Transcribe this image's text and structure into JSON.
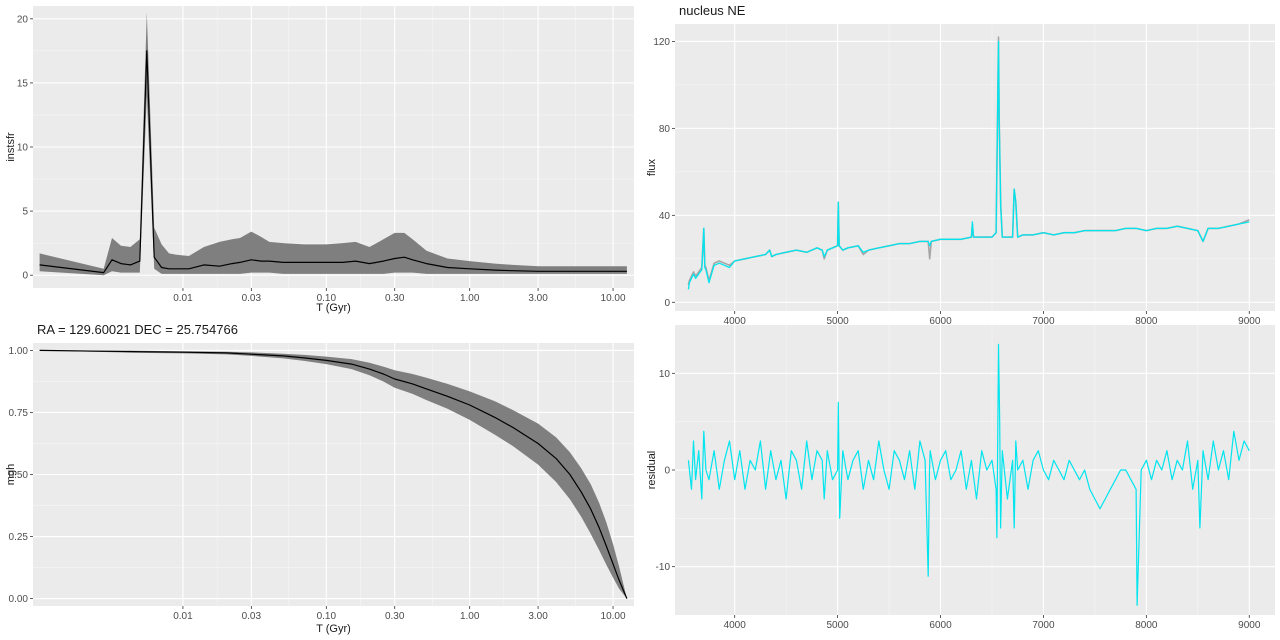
{
  "colors": {
    "panel_bg": "#EBEBEB",
    "grid_major": "#FFFFFF",
    "ribbon": "#7F7F7F",
    "line": "#000000",
    "observed": "#A6A6A6",
    "model": "#00E5EE"
  },
  "chart_data": [
    {
      "type": "line",
      "xlabel": "T (Gyr)",
      "ylabel": "instsfr",
      "x_scale": "log",
      "xlim": [
        0.0009,
        14
      ],
      "ylim": [
        -1,
        21
      ],
      "x_ticks": [
        0.01,
        0.03,
        0.1,
        0.3,
        1,
        3,
        10
      ],
      "x_tick_labels": [
        "0.01",
        "0.03",
        "0.10",
        "0.30",
        "1.00",
        "3.00",
        "10.00"
      ],
      "y_ticks": [
        0,
        5,
        10,
        15,
        20
      ],
      "y_tick_labels": [
        "0",
        "5",
        "10",
        "15",
        "20"
      ],
      "grid": true,
      "series": [
        {
          "x": [
            0.001,
            0.0028,
            0.0032,
            0.0037,
            0.0043,
            0.005,
            0.0056,
            0.0063,
            0.0071,
            0.008,
            0.009,
            0.011,
            0.014,
            0.018,
            0.022,
            0.025,
            0.03,
            0.035,
            0.04,
            0.05,
            0.07,
            0.1,
            0.13,
            0.16,
            0.2,
            0.25,
            0.3,
            0.35,
            0.4,
            0.5,
            0.7,
            1.0,
            1.5,
            2,
            3,
            5,
            7,
            10,
            12.5
          ],
          "y": [
            0.8,
            0.2,
            1.2,
            0.9,
            0.8,
            1.1,
            17.5,
            1.4,
            0.6,
            0.5,
            0.5,
            0.5,
            0.8,
            0.7,
            0.9,
            1.0,
            1.2,
            1.1,
            1.1,
            1.0,
            1.0,
            1.0,
            1.0,
            1.1,
            0.9,
            1.1,
            1.3,
            1.4,
            1.2,
            0.9,
            0.6,
            0.5,
            0.4,
            0.35,
            0.3,
            0.3,
            0.3,
            0.3,
            0.3
          ],
          "lower": [
            0.3,
            0.0,
            0.3,
            0.2,
            0.2,
            0.2,
            14.0,
            0.5,
            0.1,
            0.1,
            0.1,
            0.1,
            0.1,
            0.1,
            0.1,
            0.1,
            0.2,
            0.2,
            0.2,
            0.1,
            0.1,
            0.1,
            0.1,
            0.1,
            0.1,
            0.1,
            0.2,
            0.2,
            0.2,
            0.1,
            0.1,
            0.1,
            0.1,
            0.1,
            0.1,
            0.1,
            0.1,
            0.1,
            0.1
          ],
          "upper": [
            1.7,
            0.5,
            2.9,
            2.3,
            2.2,
            2.8,
            20.5,
            3.7,
            2.4,
            1.7,
            1.6,
            1.5,
            2.2,
            2.6,
            2.8,
            2.9,
            3.4,
            3.0,
            2.6,
            2.5,
            2.4,
            2.4,
            2.5,
            2.6,
            2.2,
            2.8,
            3.3,
            3.3,
            2.8,
            1.9,
            1.3,
            1.1,
            0.9,
            0.8,
            0.7,
            0.7,
            0.7,
            0.7,
            0.7
          ]
        }
      ]
    },
    {
      "type": "line",
      "title": "RA = 129.60021  DEC = 25.754766",
      "xlabel": "T (Gyr)",
      "ylabel": "mgh",
      "x_scale": "log",
      "xlim": [
        0.0009,
        14
      ],
      "ylim": [
        -0.03,
        1.03
      ],
      "x_ticks": [
        0.01,
        0.03,
        0.1,
        0.3,
        1,
        3,
        10
      ],
      "x_tick_labels": [
        "0.01",
        "0.03",
        "0.10",
        "0.30",
        "1.00",
        "3.00",
        "10.00"
      ],
      "y_ticks": [
        0,
        0.25,
        0.5,
        0.75,
        1
      ],
      "y_tick_labels": [
        "0.00",
        "0.25",
        "0.50",
        "0.75",
        "1.00"
      ],
      "grid": true,
      "series": [
        {
          "x": [
            0.001,
            0.005,
            0.01,
            0.02,
            0.03,
            0.05,
            0.07,
            0.1,
            0.15,
            0.2,
            0.25,
            0.3,
            0.4,
            0.5,
            0.7,
            1.0,
            1.5,
            2,
            3,
            4,
            5,
            6,
            7,
            8,
            9,
            10,
            11,
            12.5
          ],
          "y": [
            1.0,
            0.995,
            0.993,
            0.99,
            0.985,
            0.978,
            0.97,
            0.96,
            0.945,
            0.925,
            0.905,
            0.885,
            0.865,
            0.845,
            0.815,
            0.78,
            0.73,
            0.69,
            0.625,
            0.565,
            0.5,
            0.43,
            0.36,
            0.285,
            0.21,
            0.14,
            0.075,
            0.0
          ],
          "lower": [
            1.0,
            0.99,
            0.988,
            0.984,
            0.978,
            0.968,
            0.958,
            0.945,
            0.925,
            0.9,
            0.875,
            0.85,
            0.825,
            0.8,
            0.765,
            0.72,
            0.66,
            0.615,
            0.54,
            0.47,
            0.4,
            0.33,
            0.26,
            0.195,
            0.135,
            0.085,
            0.04,
            0.0
          ],
          "upper": [
            1.0,
            0.999,
            0.997,
            0.995,
            0.992,
            0.987,
            0.982,
            0.975,
            0.965,
            0.95,
            0.935,
            0.92,
            0.905,
            0.89,
            0.865,
            0.835,
            0.795,
            0.76,
            0.705,
            0.65,
            0.59,
            0.525,
            0.46,
            0.385,
            0.305,
            0.22,
            0.13,
            0.0
          ]
        }
      ]
    },
    {
      "type": "line",
      "title": "nucleus NE",
      "xlabel": "",
      "ylabel": "flux",
      "xlim": [
        3420,
        9250
      ],
      "ylim": [
        -4,
        128
      ],
      "x_ticks": [
        4000,
        5000,
        6000,
        7000,
        8000,
        9000
      ],
      "x_tick_labels": [
        "4000",
        "5000",
        "6000",
        "7000",
        "8000",
        "9000"
      ],
      "y_ticks": [
        0,
        40,
        80,
        120
      ],
      "y_tick_labels": [
        "0",
        "40",
        "80",
        "120"
      ],
      "grid": true,
      "series": [
        {
          "x": [
            3550,
            3560,
            3580,
            3600,
            3620,
            3650,
            3680,
            3700,
            3710,
            3720,
            3750,
            3800,
            3850,
            3900,
            3950,
            4000,
            4100,
            4200,
            4300,
            4340,
            4360,
            4400,
            4500,
            4600,
            4700,
            4800,
            4850,
            4870,
            4900,
            4950,
            5000,
            5007,
            5015,
            5050,
            5100,
            5200,
            5250,
            5300,
            5400,
            5500,
            5600,
            5700,
            5800,
            5880,
            5895,
            5910,
            6000,
            6100,
            6200,
            6300,
            6310,
            6320,
            6400,
            6500,
            6540,
            6560,
            6563,
            6570,
            6585,
            6600,
            6650,
            6700,
            6716,
            6731,
            6750,
            6800,
            6900,
            7000,
            7100,
            7200,
            7300,
            7400,
            7500,
            7600,
            7700,
            7800,
            7900,
            8000,
            8100,
            8200,
            8300,
            8400,
            8500,
            8550,
            8600,
            8650,
            8700,
            8800,
            8900,
            9000
          ],
          "y": [
            8,
            10,
            12,
            14,
            12,
            14,
            16,
            34,
            17,
            16,
            10,
            18,
            19,
            18,
            17,
            19,
            20,
            21,
            22,
            24,
            21,
            22,
            23,
            24,
            23,
            25,
            24,
            20,
            24,
            25,
            26,
            46,
            26,
            24,
            25,
            26,
            22,
            24,
            25,
            26,
            27,
            27,
            28,
            28,
            20,
            28,
            29,
            29,
            29,
            30,
            36,
            30,
            30,
            30,
            32,
            110,
            122,
            84,
            45,
            30,
            30,
            30,
            52,
            46,
            30,
            31,
            31,
            32,
            31,
            32,
            32,
            33,
            33,
            33,
            33,
            34,
            34,
            33,
            34,
            34,
            35,
            34,
            33,
            28,
            34,
            34,
            34,
            35,
            36,
            38
          ]
        },
        {
          "x": [
            3550,
            3560,
            3580,
            3600,
            3620,
            3650,
            3680,
            3700,
            3710,
            3720,
            3750,
            3800,
            3850,
            3900,
            3950,
            4000,
            4100,
            4200,
            4300,
            4340,
            4360,
            4400,
            4500,
            4600,
            4700,
            4800,
            4850,
            4870,
            4900,
            4950,
            5000,
            5007,
            5015,
            5050,
            5100,
            5200,
            5250,
            5300,
            5400,
            5500,
            5600,
            5700,
            5800,
            5880,
            5895,
            5910,
            6000,
            6100,
            6200,
            6300,
            6310,
            6320,
            6400,
            6500,
            6540,
            6560,
            6563,
            6570,
            6585,
            6600,
            6650,
            6700,
            6716,
            6731,
            6750,
            6800,
            6900,
            7000,
            7100,
            7200,
            7300,
            7400,
            7500,
            7600,
            7700,
            7800,
            7900,
            8000,
            8100,
            8200,
            8300,
            8400,
            8500,
            8550,
            8600,
            8650,
            8700,
            8800,
            8900,
            9000
          ],
          "y": [
            6,
            9,
            11,
            13,
            11,
            13,
            15,
            34,
            16,
            15,
            9,
            17,
            18,
            17,
            16,
            19,
            20,
            21,
            22,
            24,
            21,
            22,
            23,
            24,
            23,
            25,
            24,
            21,
            24,
            25,
            26,
            46,
            26,
            24,
            25,
            26,
            23,
            24,
            25,
            26,
            27,
            27,
            28,
            28,
            26,
            28,
            29,
            29,
            29,
            30,
            37,
            30,
            30,
            30,
            32,
            110,
            120,
            84,
            44,
            30,
            30,
            30,
            52,
            46,
            30,
            31,
            31,
            32,
            31,
            32,
            32,
            33,
            33,
            33,
            33,
            34,
            34,
            33,
            34,
            34,
            35,
            34,
            33,
            28,
            34,
            34,
            34,
            35,
            36,
            37
          ]
        }
      ]
    },
    {
      "type": "line",
      "xlabel": "",
      "ylabel": "residual",
      "xlim": [
        3420,
        9250
      ],
      "ylim": [
        -15,
        15
      ],
      "x_ticks": [
        4000,
        5000,
        6000,
        7000,
        8000,
        9000
      ],
      "x_tick_labels": [
        "4000",
        "5000",
        "6000",
        "7000",
        "8000",
        "9000"
      ],
      "y_ticks": [
        -10,
        0,
        10
      ],
      "y_tick_labels": [
        "-10",
        "0",
        "10"
      ],
      "grid": true,
      "series": [
        {
          "x": [
            3550,
            3580,
            3600,
            3620,
            3650,
            3680,
            3700,
            3720,
            3750,
            3800,
            3850,
            3900,
            3950,
            4000,
            4050,
            4100,
            4150,
            4200,
            4250,
            4300,
            4350,
            4400,
            4450,
            4500,
            4550,
            4600,
            4650,
            4700,
            4750,
            4800,
            4850,
            4870,
            4900,
            4950,
            5000,
            5007,
            5020,
            5050,
            5100,
            5150,
            5200,
            5250,
            5300,
            5350,
            5400,
            5450,
            5500,
            5550,
            5600,
            5650,
            5700,
            5750,
            5800,
            5850,
            5880,
            5893,
            5900,
            5950,
            6000,
            6050,
            6100,
            6150,
            6200,
            6250,
            6300,
            6350,
            6400,
            6450,
            6500,
            6540,
            6548,
            6560,
            6563,
            6575,
            6584,
            6600,
            6650,
            6700,
            6716,
            6731,
            6750,
            6800,
            6850,
            6900,
            6950,
            7000,
            7050,
            7100,
            7150,
            7200,
            7250,
            7300,
            7350,
            7400,
            7450,
            7500,
            7550,
            7600,
            7650,
            7700,
            7750,
            7800,
            7850,
            7900,
            7910,
            7950,
            8000,
            8050,
            8100,
            8150,
            8200,
            8250,
            8300,
            8350,
            8400,
            8450,
            8500,
            8520,
            8550,
            8600,
            8650,
            8700,
            8750,
            8800,
            8850,
            8900,
            8950,
            9000
          ],
          "y": [
            1,
            -2,
            3,
            -1,
            2,
            -3,
            4,
            0,
            -1,
            2,
            -2,
            1,
            3,
            -1,
            2,
            -2,
            1,
            0,
            3,
            -2,
            2,
            -1,
            1,
            -3,
            2,
            1,
            -2,
            3,
            -1,
            2,
            1,
            -3,
            2,
            -1,
            0,
            7,
            -5,
            2,
            -1,
            1,
            2,
            -2,
            1,
            -1,
            3,
            0,
            -2,
            2,
            1,
            -1,
            2,
            -2,
            3,
            1,
            -11,
            0,
            2,
            -1,
            1,
            2,
            -1,
            0,
            2,
            -2,
            1,
            -3,
            2,
            0,
            1,
            -2,
            -7,
            9,
            13,
            5,
            -6,
            2,
            -3,
            1,
            -6,
            3,
            0,
            1,
            -2,
            1,
            2,
            0,
            -1,
            1,
            0,
            -1,
            1,
            0,
            -1,
            0,
            -2,
            -3,
            -4,
            -3,
            -2,
            -1,
            0,
            0,
            -1,
            -2,
            -14,
            0,
            1,
            -1,
            1,
            0,
            2,
            -1,
            1,
            0,
            3,
            -2,
            1,
            -6,
            2,
            -1,
            3,
            0,
            2,
            -1,
            4,
            1,
            3,
            2
          ]
        }
      ]
    }
  ]
}
